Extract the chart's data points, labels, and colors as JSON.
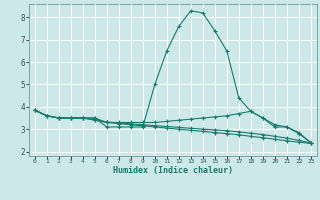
{
  "title": "",
  "xlabel": "Humidex (Indice chaleur)",
  "background_color": "#cde8e8",
  "grid_color": "#ffffff",
  "line_color": "#1a7a6e",
  "xlim": [
    -0.5,
    23.5
  ],
  "ylim": [
    1.8,
    8.6
  ],
  "yticks": [
    2,
    3,
    4,
    5,
    6,
    7,
    8
  ],
  "xticks": [
    0,
    1,
    2,
    3,
    4,
    5,
    6,
    7,
    8,
    9,
    10,
    11,
    12,
    13,
    14,
    15,
    16,
    17,
    18,
    19,
    20,
    21,
    22,
    23
  ],
  "curves": [
    {
      "x": [
        0,
        1,
        2,
        3,
        4,
        5,
        6,
        7,
        8,
        9,
        10,
        11,
        12,
        13,
        14,
        15,
        16,
        17,
        18,
        19,
        20,
        21,
        22,
        23
      ],
      "y": [
        3.85,
        3.6,
        3.5,
        3.5,
        3.5,
        3.5,
        3.1,
        3.1,
        3.1,
        3.1,
        5.0,
        6.5,
        7.6,
        8.3,
        8.2,
        7.4,
        6.5,
        4.4,
        3.8,
        3.5,
        3.1,
        3.1,
        2.8,
        2.4
      ]
    },
    {
      "x": [
        0,
        1,
        2,
        3,
        4,
        5,
        6,
        7,
        8,
        9,
        10,
        11,
        12,
        13,
        14,
        15,
        16,
        17,
        18,
        19,
        20,
        21,
        22,
        23
      ],
      "y": [
        3.85,
        3.6,
        3.5,
        3.5,
        3.5,
        3.5,
        3.3,
        3.3,
        3.3,
        3.3,
        3.3,
        3.35,
        3.4,
        3.45,
        3.5,
        3.55,
        3.6,
        3.7,
        3.8,
        3.5,
        3.2,
        3.1,
        2.85,
        2.4
      ]
    },
    {
      "x": [
        0,
        1,
        2,
        3,
        4,
        5,
        6,
        7,
        8,
        9,
        10,
        11,
        12,
        13,
        14,
        15,
        16,
        17,
        18,
        19,
        20,
        21,
        22,
        23
      ],
      "y": [
        3.85,
        3.6,
        3.5,
        3.5,
        3.5,
        3.4,
        3.3,
        3.25,
        3.2,
        3.15,
        3.1,
        3.05,
        3.0,
        2.95,
        2.9,
        2.85,
        2.8,
        2.75,
        2.68,
        2.62,
        2.55,
        2.48,
        2.42,
        2.36
      ]
    },
    {
      "x": [
        0,
        1,
        2,
        3,
        4,
        5,
        6,
        7,
        8,
        9,
        10,
        11,
        12,
        13,
        14,
        15,
        16,
        17,
        18,
        19,
        20,
        21,
        22,
        23
      ],
      "y": [
        3.85,
        3.6,
        3.5,
        3.5,
        3.5,
        3.42,
        3.32,
        3.28,
        3.24,
        3.2,
        3.16,
        3.12,
        3.08,
        3.04,
        3.0,
        2.97,
        2.93,
        2.88,
        2.82,
        2.76,
        2.68,
        2.6,
        2.5,
        2.38
      ]
    }
  ]
}
